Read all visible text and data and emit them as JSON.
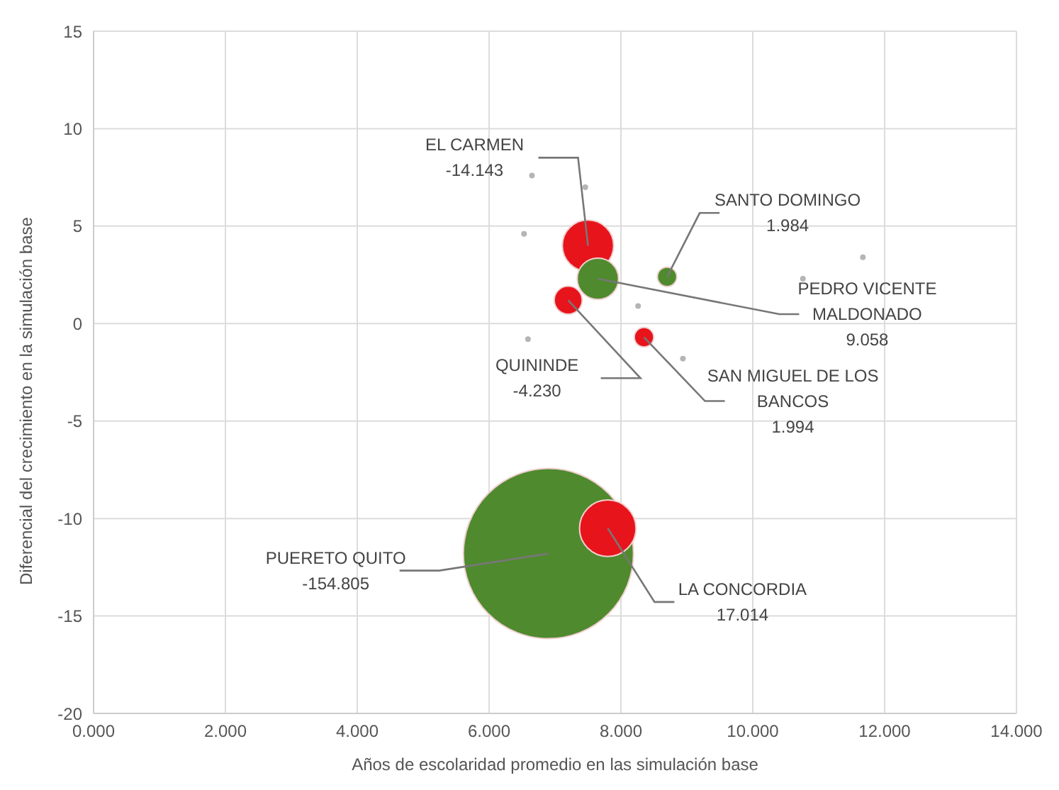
{
  "chart_data": {
    "type": "bubble",
    "xlabel": "Años de escolaridad promedio en las simulación base",
    "ylabel": "Diferencial del crecimiento en la simulación base",
    "xlim": [
      0,
      14
    ],
    "ylim": [
      -20,
      15
    ],
    "xticks": [
      {
        "value": 0,
        "label": "0.000"
      },
      {
        "value": 2,
        "label": "2.000"
      },
      {
        "value": 4,
        "label": "4.000"
      },
      {
        "value": 6,
        "label": "6.000"
      },
      {
        "value": 8,
        "label": "8.000"
      },
      {
        "value": 10,
        "label": "10.000"
      },
      {
        "value": 12,
        "label": "12.000"
      },
      {
        "value": 14,
        "label": "14.000"
      }
    ],
    "yticks": [
      -20,
      -15,
      -10,
      -5,
      0,
      5,
      10,
      15
    ],
    "grid": true,
    "legend": false,
    "series": [
      {
        "type": "scatter",
        "marker": "circle",
        "color": "#b5b5b5",
        "x": [
          6.65,
          7.46,
          6.53,
          11.67,
          10.76,
          8.26,
          6.59,
          8.94
        ],
        "values": [
          7.6,
          7.0,
          4.6,
          3.4,
          2.3,
          0.9,
          -0.8,
          -1.8
        ]
      },
      {
        "name": "PUERETO QUITO",
        "color": "#4f8a2e",
        "x": [
          6.9
        ],
        "values": [
          -11.8
        ],
        "sizes": [
          1
        ]
      },
      {
        "name": "EL CARMEN",
        "color": "#e8141c",
        "x": [
          7.5
        ],
        "values": [
          4.0
        ],
        "sizes": [
          0.091
        ]
      },
      {
        "name": "PEDRO VICENTE MALDONADO",
        "color": "#4f8a2e",
        "x": [
          7.65
        ],
        "values": [
          2.3
        ],
        "sizes": [
          0.059
        ]
      },
      {
        "name": "QUININDE",
        "color": "#e8141c",
        "x": [
          7.2
        ],
        "values": [
          1.2
        ],
        "sizes": [
          0.027
        ]
      },
      {
        "name": "SANTO DOMINGO",
        "color": "#4f8a2e",
        "x": [
          8.7
        ],
        "values": [
          2.4
        ],
        "sizes": [
          0.013
        ]
      },
      {
        "name": "SAN MIGUEL DE LOS BANCOS",
        "color": "#e8141c",
        "x": [
          8.35
        ],
        "values": [
          -0.7
        ],
        "sizes": [
          0.013
        ]
      },
      {
        "name": "LA CONCORDIA",
        "color": "#e8141c",
        "x": [
          7.8
        ],
        "values": [
          -10.5
        ],
        "sizes": [
          0.11
        ]
      }
    ],
    "annotations": [
      "-154.805",
      "-14.143",
      "9.058",
      "-4.230",
      "1.984",
      "1.994",
      "17.014"
    ]
  }
}
